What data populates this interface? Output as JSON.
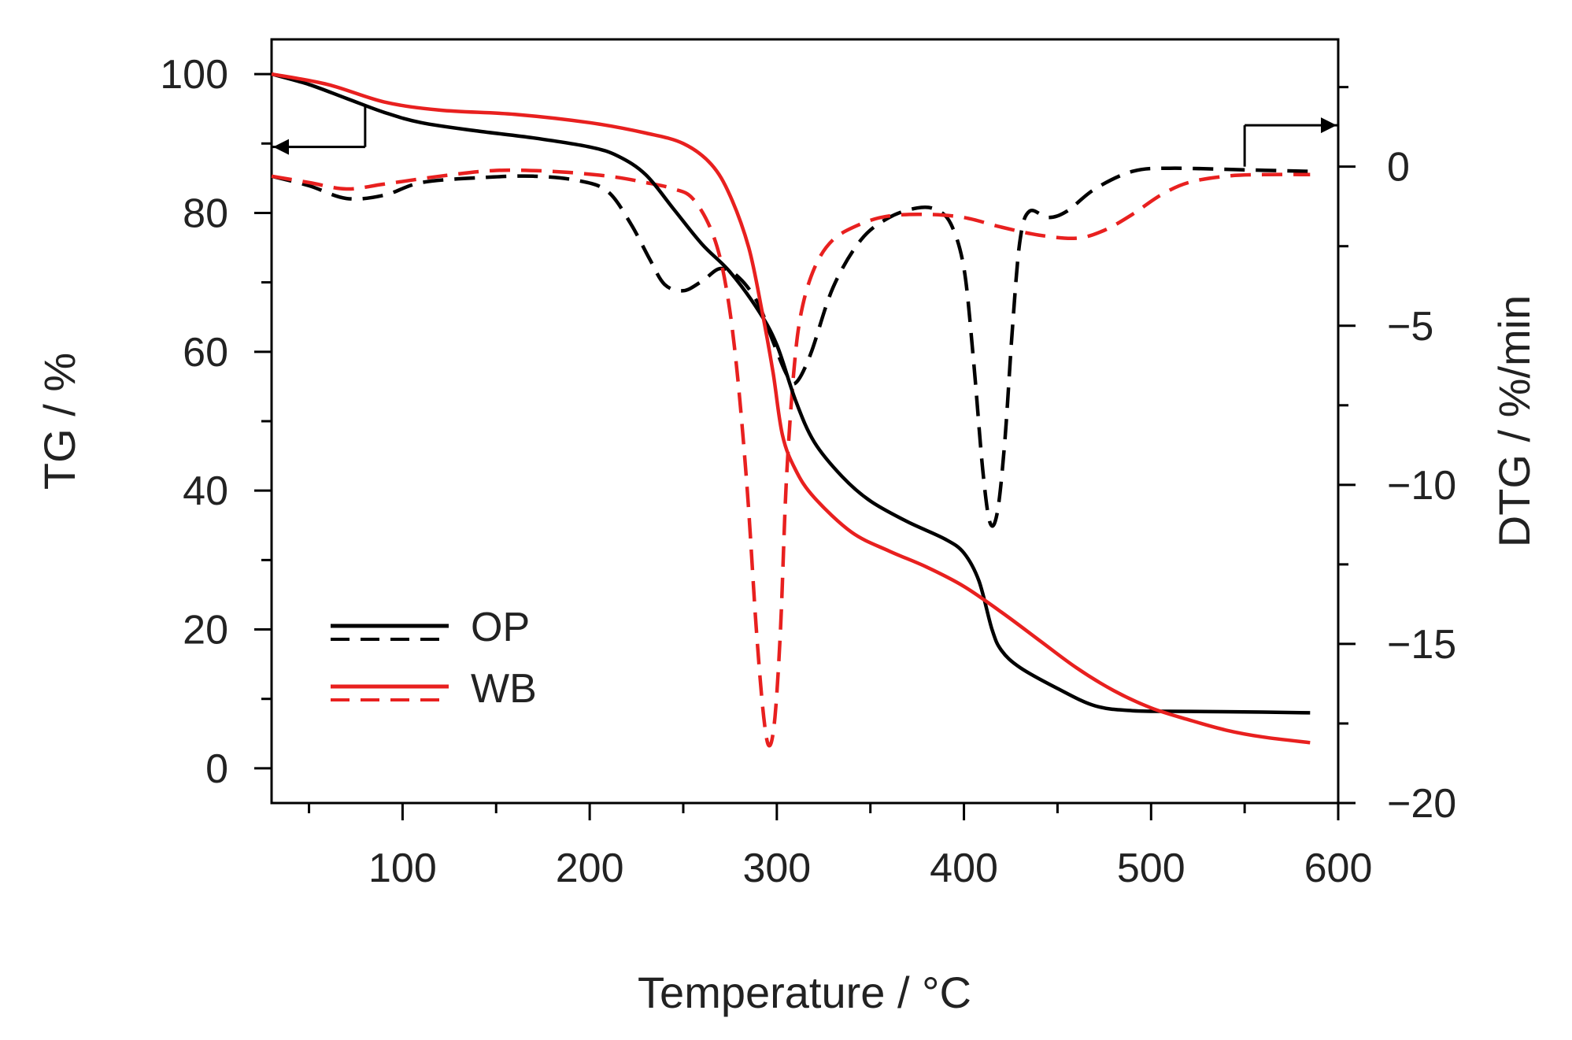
{
  "chart_data": {
    "type": "line",
    "xlabel": "Temperature / °C",
    "ylabel_left": "TG / %",
    "ylabel_right": "DTG / %/min",
    "xlim": [
      30,
      600
    ],
    "ylim_left": [
      -5,
      105
    ],
    "ylim_right": [
      -20,
      4
    ],
    "x_ticks": [
      100,
      200,
      300,
      400,
      500,
      600
    ],
    "x_tick_labels": [
      "100",
      "200",
      "300",
      "400",
      "500",
      "600"
    ],
    "y_left_ticks": [
      0,
      20,
      40,
      60,
      80,
      100
    ],
    "y_left_tick_labels": [
      "0",
      "20",
      "40",
      "60",
      "80",
      "100"
    ],
    "y_right_ticks": [
      0,
      -5,
      -10,
      -15,
      -20
    ],
    "y_right_tick_labels": [
      "0",
      "−5",
      "−10",
      "−15",
      "−20"
    ],
    "legend": {
      "position": "bottom-left",
      "entries": [
        {
          "label": "OP",
          "color": "#000000"
        },
        {
          "label": "WB",
          "color": "#e8201f"
        }
      ]
    },
    "series": [
      {
        "name": "OP TG",
        "group": "OP",
        "axis": "left",
        "style": "solid",
        "color": "#000000",
        "points": [
          [
            30,
            100
          ],
          [
            50,
            98.5
          ],
          [
            70,
            96.5
          ],
          [
            90,
            94.5
          ],
          [
            110,
            93
          ],
          [
            140,
            91.8
          ],
          [
            170,
            90.8
          ],
          [
            200,
            89.5
          ],
          [
            215,
            88.2
          ],
          [
            230,
            85.5
          ],
          [
            245,
            80.5
          ],
          [
            260,
            75.5
          ],
          [
            275,
            71.5
          ],
          [
            290,
            66
          ],
          [
            300,
            61
          ],
          [
            310,
            53
          ],
          [
            320,
            47
          ],
          [
            335,
            42
          ],
          [
            350,
            38.5
          ],
          [
            370,
            35.5
          ],
          [
            390,
            33
          ],
          [
            400,
            31
          ],
          [
            408,
            27
          ],
          [
            415,
            20
          ],
          [
            420,
            17
          ],
          [
            430,
            14.5
          ],
          [
            450,
            11.5
          ],
          [
            470,
            9
          ],
          [
            490,
            8.3
          ],
          [
            520,
            8.2
          ],
          [
            560,
            8.1
          ],
          [
            585,
            8
          ]
        ]
      },
      {
        "name": "WB TG",
        "group": "WB",
        "axis": "left",
        "style": "solid",
        "color": "#e8201f",
        "points": [
          [
            30,
            100
          ],
          [
            60,
            98.5
          ],
          [
            90,
            96
          ],
          [
            120,
            94.8
          ],
          [
            160,
            94.2
          ],
          [
            200,
            93
          ],
          [
            230,
            91.5
          ],
          [
            250,
            90
          ],
          [
            265,
            87
          ],
          [
            275,
            82.5
          ],
          [
            285,
            75
          ],
          [
            292,
            66
          ],
          [
            298,
            57
          ],
          [
            303,
            48
          ],
          [
            310,
            43
          ],
          [
            320,
            39
          ],
          [
            340,
            34
          ],
          [
            360,
            31.3
          ],
          [
            380,
            29
          ],
          [
            400,
            26.2
          ],
          [
            420,
            22.5
          ],
          [
            440,
            18.5
          ],
          [
            460,
            14.5
          ],
          [
            480,
            11.2
          ],
          [
            500,
            8.7
          ],
          [
            520,
            7
          ],
          [
            540,
            5.5
          ],
          [
            560,
            4.5
          ],
          [
            585,
            3.7
          ]
        ]
      },
      {
        "name": "OP DTG",
        "group": "OP",
        "axis": "right",
        "style": "dashed",
        "color": "#000000",
        "points": [
          [
            30,
            -0.3
          ],
          [
            50,
            -0.6
          ],
          [
            70,
            -1
          ],
          [
            90,
            -0.9
          ],
          [
            110,
            -0.5
          ],
          [
            140,
            -0.35
          ],
          [
            170,
            -0.3
          ],
          [
            195,
            -0.45
          ],
          [
            210,
            -0.8
          ],
          [
            222,
            -1.8
          ],
          [
            232,
            -2.9
          ],
          [
            240,
            -3.7
          ],
          [
            250,
            -3.9
          ],
          [
            260,
            -3.6
          ],
          [
            270,
            -3.2
          ],
          [
            280,
            -3.5
          ],
          [
            290,
            -4.3
          ],
          [
            298,
            -5.5
          ],
          [
            305,
            -6.5
          ],
          [
            310,
            -6.8
          ],
          [
            318,
            -5.9
          ],
          [
            330,
            -3.8
          ],
          [
            345,
            -2.3
          ],
          [
            360,
            -1.6
          ],
          [
            375,
            -1.3
          ],
          [
            385,
            -1.35
          ],
          [
            393,
            -1.8
          ],
          [
            400,
            -3.2
          ],
          [
            405,
            -6
          ],
          [
            410,
            -9.5
          ],
          [
            414,
            -11.2
          ],
          [
            418,
            -10.8
          ],
          [
            422,
            -8.5
          ],
          [
            426,
            -5
          ],
          [
            430,
            -2.3
          ],
          [
            435,
            -1.4
          ],
          [
            445,
            -1.6
          ],
          [
            455,
            -1.4
          ],
          [
            470,
            -0.7
          ],
          [
            490,
            -0.15
          ],
          [
            510,
            -0.05
          ],
          [
            550,
            -0.1
          ],
          [
            585,
            -0.15
          ]
        ]
      },
      {
        "name": "WB DTG",
        "group": "WB",
        "axis": "right",
        "style": "dashed",
        "color": "#e8201f",
        "points": [
          [
            30,
            -0.3
          ],
          [
            50,
            -0.5
          ],
          [
            70,
            -0.7
          ],
          [
            90,
            -0.55
          ],
          [
            120,
            -0.3
          ],
          [
            150,
            -0.12
          ],
          [
            180,
            -0.15
          ],
          [
            210,
            -0.3
          ],
          [
            230,
            -0.5
          ],
          [
            245,
            -0.7
          ],
          [
            255,
            -1
          ],
          [
            265,
            -2
          ],
          [
            272,
            -3.5
          ],
          [
            278,
            -6
          ],
          [
            284,
            -10
          ],
          [
            289,
            -14.5
          ],
          [
            293,
            -17.3
          ],
          [
            296,
            -18.2
          ],
          [
            299,
            -17.3
          ],
          [
            302,
            -14.5
          ],
          [
            305,
            -10
          ],
          [
            309,
            -6.5
          ],
          [
            313,
            -4.6
          ],
          [
            320,
            -3.2
          ],
          [
            330,
            -2.3
          ],
          [
            345,
            -1.8
          ],
          [
            360,
            -1.55
          ],
          [
            380,
            -1.5
          ],
          [
            400,
            -1.6
          ],
          [
            420,
            -1.9
          ],
          [
            440,
            -2.15
          ],
          [
            460,
            -2.25
          ],
          [
            475,
            -2
          ],
          [
            490,
            -1.5
          ],
          [
            505,
            -0.9
          ],
          [
            520,
            -0.5
          ],
          [
            540,
            -0.3
          ],
          [
            560,
            -0.25
          ],
          [
            585,
            -0.25
          ]
        ]
      }
    ],
    "annotations": [
      {
        "type": "arrow",
        "direction": "left",
        "axis": "left",
        "x": [
          80,
          30
        ],
        "y_value": 89.5,
        "hook_x": 80,
        "hook_to_y": 95.5
      },
      {
        "type": "arrow",
        "direction": "right",
        "axis": "right",
        "x": [
          550,
          600
        ],
        "y_value": 1.3,
        "hook_x": 550,
        "hook_to_y": 0
      }
    ]
  }
}
